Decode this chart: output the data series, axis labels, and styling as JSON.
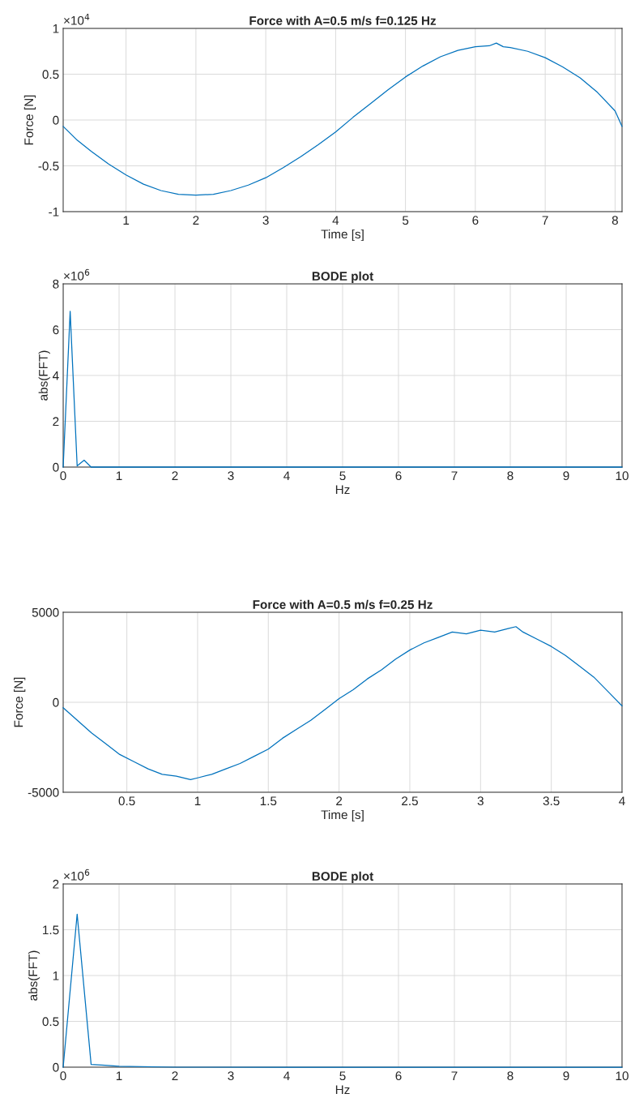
{
  "chart_data": [
    {
      "type": "line",
      "title": "Force with A=0.5 m/s f=0.125 Hz",
      "xlabel": "Time [s]",
      "ylabel": "Force [N]",
      "annotations": [
        "×10$^{4}$"
      ],
      "series": [
        {
          "color": "#0072bd",
          "x": [
            0.1,
            0.3,
            0.5,
            0.75,
            1,
            1.25,
            1.5,
            1.75,
            2,
            2.25,
            2.5,
            2.75,
            3,
            3.25,
            3.5,
            3.75,
            4,
            4.25,
            4.5,
            4.75,
            5,
            5.25,
            5.5,
            5.75,
            6,
            6.2,
            6.3,
            6.4,
            6.5,
            6.75,
            7,
            7.25,
            7.5,
            7.75,
            8,
            8.1
          ],
          "values": [
            -0.07,
            -0.22,
            -0.34,
            -0.48,
            -0.6,
            -0.7,
            -0.77,
            -0.81,
            -0.82,
            -0.81,
            -0.77,
            -0.71,
            -0.63,
            -0.52,
            -0.4,
            -0.27,
            -0.13,
            0.03,
            0.18,
            0.33,
            0.47,
            0.59,
            0.69,
            0.76,
            0.8,
            0.81,
            0.84,
            0.8,
            0.79,
            0.75,
            0.68,
            0.58,
            0.46,
            0.3,
            0.1,
            -0.07
          ]
        }
      ],
      "xlim": [
        0.1,
        8.1
      ],
      "xticks": [
        1,
        2,
        3,
        4,
        5,
        6,
        7,
        8
      ],
      "ylim": [
        -1,
        1
      ],
      "yticks": [
        -1,
        -0.5,
        0,
        0.5,
        1
      ],
      "grid": true,
      "legend": false
    },
    {
      "type": "line",
      "title": "BODE plot",
      "xlabel": "Hz",
      "ylabel": "abs(FFT)",
      "annotations": [
        "×10$^{6}$"
      ],
      "series": [
        {
          "color": "#0072bd",
          "x": [
            0,
            0.125,
            0.25,
            0.375,
            0.5,
            1,
            2,
            4,
            6,
            8,
            10
          ],
          "values": [
            0,
            6.8,
            0.05,
            0.3,
            0,
            0,
            0,
            0,
            0,
            0,
            0
          ]
        }
      ],
      "xlim": [
        0,
        10
      ],
      "xticks": [
        0,
        1,
        2,
        3,
        4,
        5,
        6,
        7,
        8,
        9,
        10
      ],
      "ylim": [
        0,
        8
      ],
      "yticks": [
        0,
        2,
        4,
        6,
        8
      ],
      "grid": true,
      "legend": false
    },
    {
      "type": "line",
      "title": "Force with A=0.5 m/s f=0.25 Hz",
      "xlabel": "Time [s]",
      "ylabel": "Force [N]",
      "series": [
        {
          "color": "#0072bd",
          "x": [
            0.05,
            0.15,
            0.25,
            0.35,
            0.45,
            0.55,
            0.65,
            0.75,
            0.85,
            0.95,
            1,
            1.1,
            1.2,
            1.3,
            1.4,
            1.5,
            1.6,
            1.7,
            1.8,
            1.9,
            2,
            2.1,
            2.2,
            2.3,
            2.4,
            2.5,
            2.6,
            2.7,
            2.8,
            2.9,
            3,
            3.1,
            3.2,
            3.25,
            3.3,
            3.4,
            3.5,
            3.6,
            3.7,
            3.8,
            3.9,
            4
          ],
          "values": [
            -300,
            -1000,
            -1700,
            -2300,
            -2900,
            -3300,
            -3700,
            -4000,
            -4100,
            -4300,
            -4200,
            -4000,
            -3700,
            -3400,
            -3000,
            -2600,
            -2000,
            -1500,
            -1000,
            -400,
            200,
            700,
            1300,
            1800,
            2400,
            2900,
            3300,
            3600,
            3900,
            3800,
            4000,
            3900,
            4100,
            4200,
            3900,
            3500,
            3100,
            2600,
            2000,
            1400,
            600,
            -200
          ]
        }
      ],
      "xlim": [
        0.05,
        4
      ],
      "xticks": [
        0.5,
        1,
        1.5,
        2,
        2.5,
        3,
        3.5,
        4
      ],
      "ylim": [
        -5000,
        5000
      ],
      "yticks": [
        -5000,
        0,
        5000
      ],
      "grid": true,
      "legend": false
    },
    {
      "type": "line",
      "title": "BODE plot",
      "xlabel": "Hz",
      "ylabel": "abs(FFT)",
      "annotations": [
        "×10$^{6}$"
      ],
      "series": [
        {
          "color": "#0072bd",
          "x": [
            0,
            0.25,
            0.5,
            0.75,
            1,
            2,
            4,
            6,
            8,
            10
          ],
          "values": [
            0,
            1.67,
            0.03,
            0.02,
            0.01,
            0,
            0,
            0,
            0,
            0
          ]
        }
      ],
      "xlim": [
        0,
        10
      ],
      "xticks": [
        0,
        1,
        2,
        3,
        4,
        5,
        6,
        7,
        8,
        9,
        10
      ],
      "ylim": [
        0,
        2
      ],
      "yticks": [
        0,
        0.5,
        1,
        1.5,
        2
      ],
      "grid": true,
      "legend": false
    }
  ]
}
